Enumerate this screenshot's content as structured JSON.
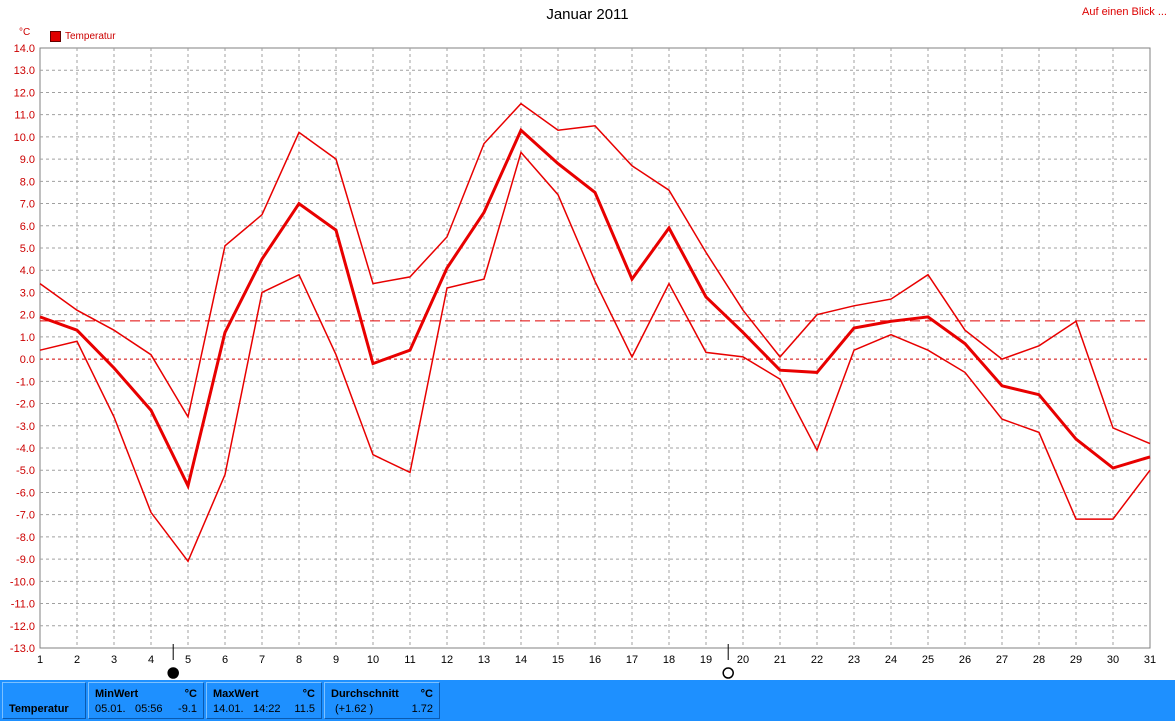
{
  "title": "Januar 2011",
  "overview_link": "Auf einen Blick ...",
  "unit": "°C",
  "legend": {
    "label": "Temperatur",
    "color": "#e00000"
  },
  "chart_data": {
    "type": "line",
    "title": "Januar 2011",
    "ylabel": "°C",
    "ylim": [
      -13,
      14
    ],
    "y_ticks": [
      "14.0",
      "13.0",
      "12.0",
      "11.0",
      "10.0",
      "9.0",
      "8.0",
      "7.0",
      "6.0",
      "5.0",
      "4.0",
      "3.0",
      "2.0",
      "1.0",
      "0.0",
      "-1.0",
      "-2.0",
      "-3.0",
      "-4.0",
      "-5.0",
      "-6.0",
      "-7.0",
      "-8.0",
      "-9.0",
      "-10.0",
      "-11.0",
      "-12.0",
      "-13.0"
    ],
    "x": [
      1,
      2,
      3,
      4,
      5,
      6,
      7,
      8,
      9,
      10,
      11,
      12,
      13,
      14,
      15,
      16,
      17,
      18,
      19,
      20,
      21,
      22,
      23,
      24,
      25,
      26,
      27,
      28,
      29,
      30,
      31
    ],
    "series": [
      {
        "role": "max",
        "values": [
          3.4,
          2.2,
          1.3,
          0.2,
          -2.6,
          5.1,
          6.5,
          10.2,
          9.0,
          3.4,
          3.7,
          5.5,
          9.7,
          11.5,
          10.3,
          10.5,
          8.7,
          7.6,
          4.8,
          2.2,
          0.1,
          2.0,
          2.4,
          2.7,
          3.8,
          1.3,
          0.0,
          0.6,
          1.7,
          -3.1,
          -3.8
        ]
      },
      {
        "role": "avg",
        "values": [
          1.9,
          1.3,
          -0.4,
          -2.3,
          -5.7,
          1.2,
          4.5,
          7.0,
          5.8,
          -0.2,
          0.4,
          4.1,
          6.6,
          10.3,
          8.8,
          7.5,
          3.6,
          5.9,
          2.8,
          1.2,
          -0.5,
          -0.6,
          1.4,
          1.7,
          1.9,
          0.7,
          -1.2,
          -1.6,
          -3.6,
          -4.9,
          -4.4
        ]
      },
      {
        "role": "min",
        "values": [
          0.4,
          0.8,
          -2.6,
          -6.9,
          -9.1,
          -5.2,
          3.0,
          3.8,
          0.2,
          -4.3,
          -5.1,
          3.2,
          3.6,
          9.3,
          7.4,
          3.5,
          0.1,
          3.4,
          0.3,
          0.1,
          -0.9,
          -4.1,
          0.4,
          1.1,
          0.4,
          -0.6,
          -2.7,
          -3.3,
          -7.2,
          -7.2,
          -5.0
        ]
      }
    ],
    "mean_line": 1.72,
    "grid": true,
    "markers": [
      {
        "day": 5,
        "type": "min"
      },
      {
        "day": 20,
        "type": "full-moon"
      }
    ]
  },
  "stats": {
    "row_label": "Temperatur",
    "min": {
      "title": "MinWert",
      "unit": "°C",
      "date": "05.01.",
      "time": "05:56",
      "value": "-9.1"
    },
    "max": {
      "title": "MaxWert",
      "unit": "°C",
      "date": "14.01.",
      "time": "14:22",
      "value": "11.5"
    },
    "avg": {
      "title": "Durchschnitt",
      "unit": "°C",
      "diff": "(+1.62 )",
      "value": "1.72"
    }
  }
}
